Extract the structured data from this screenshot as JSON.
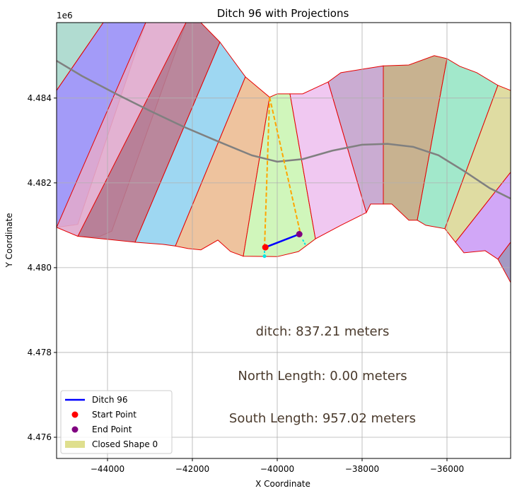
{
  "chart_data": {
    "type": "map",
    "title": "Ditch 96 with Projections",
    "xlabel": "X Coordinate",
    "ylabel": "Y Coordinate",
    "y_offset_label": "1e6",
    "xlim": [
      -45200,
      -34500
    ],
    "ylim": [
      4475500,
      4485780
    ],
    "grid": true,
    "x_ticks": [
      -44000,
      -42000,
      -40000,
      -38000,
      -36000
    ],
    "x_tick_labels": [
      "−44000",
      "−42000",
      "−40000",
      "−38000",
      "−36000"
    ],
    "y_ticks": [
      4476000,
      4478000,
      4480000,
      4482000,
      4484000
    ],
    "y_tick_labels": [
      "4.476",
      "4.478",
      "4.480",
      "4.482",
      "4.484"
    ],
    "legend_position": "lower-left",
    "legend": [
      {
        "label": "Ditch 96",
        "kind": "line",
        "color": "#0000ff"
      },
      {
        "label": "Start Point",
        "kind": "dot",
        "color": "#ff0000"
      },
      {
        "label": "End Point",
        "kind": "dot",
        "color": "#800080"
      },
      {
        "label": "Closed Shape 0",
        "kind": "patch",
        "color": "#d9d97a"
      }
    ],
    "annotations": [
      {
        "text": "ditch: 837.21 meters",
        "x": -40000,
        "y": 4478500
      },
      {
        "text": "North Length: 0.00 meters",
        "x": -40000,
        "y": 4477450
      },
      {
        "text": "South Length: 957.02 meters",
        "x": -40000,
        "y": 4476450
      }
    ],
    "ditch": {
      "name": "Ditch 96",
      "color": "#0000ff",
      "start": {
        "x": -40280,
        "y": 4480480
      },
      "end": {
        "x": -39480,
        "y": 4480790
      }
    },
    "projection_lines": {
      "color": "#ffa500",
      "from": {
        "x": -40180,
        "y": 4484020
      },
      "to": [
        {
          "x": -40300,
          "y": 4480480
        },
        {
          "x": -39450,
          "y": 4480790
        }
      ]
    },
    "projection_ticks": {
      "color": "#00e5e5",
      "segments": [
        [
          {
            "x": -40300,
            "y": 4480480
          },
          {
            "x": -40300,
            "y": 4480270
          }
        ],
        [
          {
            "x": -39400,
            "y": 4480660
          },
          {
            "x": -39330,
            "y": 4480530
          }
        ]
      ]
    },
    "centerline": {
      "color": "#808080",
      "points": [
        {
          "x": -45200,
          "y": 4484880
        },
        {
          "x": -44600,
          "y": 4484520
        },
        {
          "x": -43800,
          "y": 4484100
        },
        {
          "x": -43000,
          "y": 4483700
        },
        {
          "x": -42200,
          "y": 4483320
        },
        {
          "x": -41400,
          "y": 4482980
        },
        {
          "x": -40600,
          "y": 4482650
        },
        {
          "x": -40000,
          "y": 4482500
        },
        {
          "x": -39400,
          "y": 4482560
        },
        {
          "x": -38700,
          "y": 4482760
        },
        {
          "x": -38000,
          "y": 4482900
        },
        {
          "x": -37400,
          "y": 4482920
        },
        {
          "x": -36800,
          "y": 4482850
        },
        {
          "x": -36200,
          "y": 4482650
        },
        {
          "x": -35600,
          "y": 4482280
        },
        {
          "x": -35000,
          "y": 4481880
        },
        {
          "x": -34500,
          "y": 4481630
        }
      ]
    },
    "polygons": [
      {
        "color": "#a9d8cc",
        "points": [
          [
            -45200,
            4485780
          ],
          [
            -44100,
            4485780
          ],
          [
            -45200,
            4484180
          ]
        ]
      },
      {
        "color": "#9990f7",
        "points": [
          [
            -44100,
            4485780
          ],
          [
            -43100,
            4485780
          ],
          [
            -44700,
            4481020
          ],
          [
            -45200,
            4480950
          ],
          [
            -45200,
            4484180
          ]
        ]
      },
      {
        "color": "#e0aacd",
        "points": [
          [
            -43100,
            4485780
          ],
          [
            -42150,
            4485780
          ],
          [
            -43900,
            4480860
          ],
          [
            -44200,
            4480730
          ],
          [
            -44700,
            4480740
          ],
          [
            -45200,
            4480950
          ]
        ]
      },
      {
        "color": "#b27a91",
        "points": [
          [
            -42150,
            4485780
          ],
          [
            -41800,
            4485780
          ],
          [
            -41350,
            4485320
          ],
          [
            -43350,
            4480600
          ],
          [
            -44700,
            4480740
          ]
        ]
      },
      {
        "color": "#94d3f1",
        "points": [
          [
            -41350,
            4485320
          ],
          [
            -40750,
            4484500
          ],
          [
            -42400,
            4480510
          ],
          [
            -42700,
            4480550
          ],
          [
            -43350,
            4480600
          ]
        ]
      },
      {
        "color": "#ecbc93",
        "points": [
          [
            -40750,
            4484500
          ],
          [
            -40180,
            4484020
          ],
          [
            -40800,
            4480270
          ],
          [
            -41100,
            4480380
          ],
          [
            -41400,
            4480650
          ],
          [
            -41800,
            4480420
          ],
          [
            -42100,
            4480450
          ],
          [
            -42400,
            4480510
          ]
        ]
      },
      {
        "color": "#cbf5b4",
        "points": [
          [
            -40180,
            4484020
          ],
          [
            -40000,
            4484100
          ],
          [
            -39700,
            4484100
          ],
          [
            -39100,
            4480680
          ],
          [
            -39500,
            4480380
          ],
          [
            -40000,
            4480260
          ],
          [
            -40800,
            4480270
          ]
        ]
      },
      {
        "color": "#eec2ef",
        "points": [
          [
            -39700,
            4484100
          ],
          [
            -39400,
            4484100
          ],
          [
            -38800,
            4484380
          ],
          [
            -37900,
            4481300
          ],
          [
            -38500,
            4481000
          ],
          [
            -39100,
            4480680
          ]
        ]
      },
      {
        "color": "#c4a3cd",
        "points": [
          [
            -38800,
            4484380
          ],
          [
            -38500,
            4484600
          ],
          [
            -37500,
            4484760
          ],
          [
            -37500,
            4481500
          ],
          [
            -37800,
            4481500
          ],
          [
            -37900,
            4481300
          ]
        ]
      },
      {
        "color": "#c2aa84",
        "points": [
          [
            -37500,
            4484760
          ],
          [
            -36900,
            4484780
          ],
          [
            -36300,
            4485000
          ],
          [
            -36000,
            4484930
          ],
          [
            -36700,
            4481120
          ],
          [
            -36900,
            4481120
          ],
          [
            -37300,
            4481500
          ],
          [
            -37500,
            4481500
          ]
        ]
      },
      {
        "color": "#98e6c5",
        "points": [
          [
            -36000,
            4484930
          ],
          [
            -35700,
            4484750
          ],
          [
            -35300,
            4484600
          ],
          [
            -34800,
            4484300
          ],
          [
            -36050,
            4480920
          ],
          [
            -36500,
            4481000
          ],
          [
            -36700,
            4481120
          ]
        ]
      },
      {
        "color": "#dcd898",
        "points": [
          [
            -34800,
            4484300
          ],
          [
            -34500,
            4484180
          ],
          [
            -34500,
            4482250
          ],
          [
            -35800,
            4480600
          ],
          [
            -36050,
            4480920
          ]
        ]
      },
      {
        "color": "#cc9df6",
        "points": [
          [
            -34500,
            4482250
          ],
          [
            -34500,
            4480600
          ],
          [
            -34800,
            4480200
          ],
          [
            -35100,
            4480400
          ],
          [
            -35600,
            4480350
          ],
          [
            -35800,
            4480600
          ]
        ]
      },
      {
        "color": "#9a8ebd",
        "points": [
          [
            -34500,
            4480600
          ],
          [
            -34500,
            4479650
          ],
          [
            -34800,
            4480200
          ]
        ]
      }
    ]
  }
}
